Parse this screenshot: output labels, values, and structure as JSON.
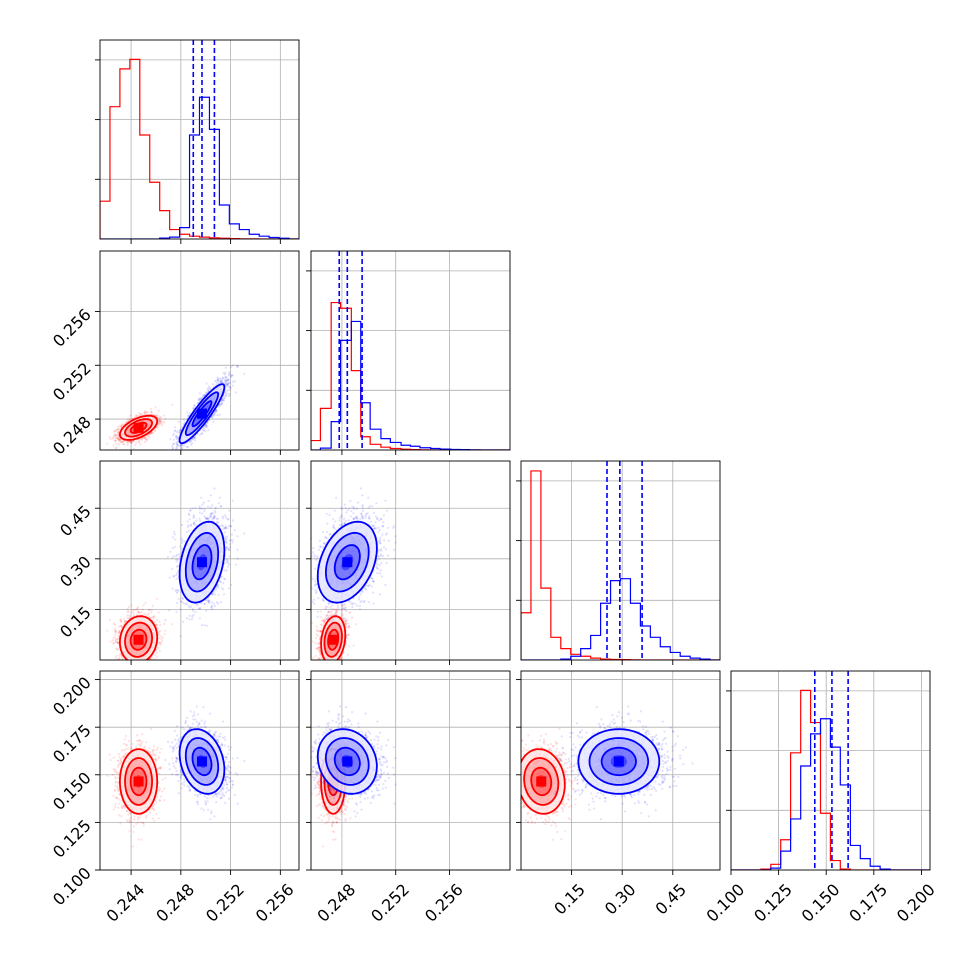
{
  "colors": {
    "red": "#ff0000",
    "blue": "#0000ff",
    "grid": "#b0b0b0",
    "axis": "#000000"
  },
  "chart_data": {
    "type": "corner",
    "grid": true,
    "series": [
      {
        "color": "red"
      },
      {
        "color": "blue"
      }
    ],
    "params": [
      {
        "range": [
          0.2415,
          0.2575
        ],
        "ticks": [
          {
            "v": 0.244,
            "label": "0.244"
          },
          {
            "v": 0.248,
            "label": "0.248"
          },
          {
            "v": 0.252,
            "label": "0.252"
          },
          {
            "v": 0.256,
            "label": "0.256"
          }
        ]
      },
      {
        "range": [
          0.2457,
          0.2605
        ],
        "ticks": [
          {
            "v": 0.248,
            "label": "0.248"
          },
          {
            "v": 0.252,
            "label": "0.252"
          },
          {
            "v": 0.256,
            "label": "0.256"
          }
        ]
      },
      {
        "range": [
          0.0,
          0.59
        ],
        "ticks": [
          {
            "v": 0.15,
            "label": "0.15"
          },
          {
            "v": 0.3,
            "label": "0.30"
          },
          {
            "v": 0.45,
            "label": "0.45"
          }
        ]
      },
      {
        "range": [
          0.1,
          0.2045
        ],
        "ticks": [
          {
            "v": 0.1,
            "label": "0.100"
          },
          {
            "v": 0.125,
            "label": "0.125"
          },
          {
            "v": 0.15,
            "label": "0.150"
          },
          {
            "v": 0.175,
            "label": "0.175"
          },
          {
            "v": 0.2,
            "label": "0.200"
          }
        ]
      }
    ],
    "samples": [
      {
        "color": "red",
        "mean": [
          0.2446,
          0.24735,
          0.06,
          0.1465
        ],
        "sd": [
          0.00075,
          0.00045,
          0.035,
          0.0085
        ],
        "corr": [
          [
            1,
            0.55,
            0.1,
            0
          ],
          [
            0.55,
            1,
            0.2,
            0
          ],
          [
            0.1,
            0.2,
            1,
            -0.1
          ],
          [
            0,
            0,
            -0.1,
            1
          ]
        ]
      },
      {
        "color": "blue",
        "mean": [
          0.2497,
          0.2484,
          0.29,
          0.157
        ],
        "sd": [
          0.0009,
          0.0011,
          0.06,
          0.0085
        ],
        "corr": [
          [
            1,
            0.9,
            0.3,
            -0.25
          ],
          [
            0.9,
            1,
            0.35,
            -0.15
          ],
          [
            0.3,
            0.35,
            1,
            0
          ],
          [
            -0.25,
            -0.15,
            0,
            1
          ]
        ]
      }
    ],
    "histograms": [
      {
        "param": 0,
        "series": [
          {
            "color": "red",
            "edges": [
              0.2415,
              0.2423,
              0.2431,
              0.2439,
              0.2447,
              0.2455,
              0.2463,
              0.2471,
              0.2479,
              0.2487,
              0.2495,
              0.2503,
              0.2511,
              0.2519,
              0.2527,
              0.2535,
              0.2543,
              0.2551,
              0.2559,
              0.2567,
              0.2575
            ],
            "values": [
              0.2,
              0.7,
              0.9,
              0.95,
              0.55,
              0.3,
              0.15,
              0.05,
              0.025,
              0.015,
              0.01,
              0.006,
              0.004,
              0.002,
              0.001,
              0.001,
              0,
              0,
              0,
              0
            ]
          },
          {
            "color": "blue",
            "edges": [
              0.2415,
              0.2423,
              0.2431,
              0.2439,
              0.2447,
              0.2455,
              0.2463,
              0.2471,
              0.2479,
              0.2487,
              0.2495,
              0.2503,
              0.2511,
              0.2519,
              0.2527,
              0.2535,
              0.2543,
              0.2551,
              0.2559,
              0.2567,
              0.2575
            ],
            "values": [
              0,
              0,
              0,
              0,
              0,
              0,
              0.005,
              0.01,
              0.06,
              0.55,
              0.75,
              0.58,
              0.18,
              0.08,
              0.05,
              0.025,
              0.015,
              0.008,
              0.004,
              0
            ]
          }
        ],
        "quantiles": [
          0.249,
          0.2497,
          0.2507
        ]
      },
      {
        "param": 1,
        "series": [
          {
            "color": "red",
            "edges": [
              0.2457,
              0.2464,
              0.2472,
              0.2479,
              0.2487,
              0.2494,
              0.2501,
              0.2509,
              0.2516,
              0.2524,
              0.2531,
              0.2538,
              0.2546,
              0.2553,
              0.2561,
              0.2568,
              0.2575,
              0.2583,
              0.259,
              0.2598,
              0.2605
            ],
            "values": [
              0.05,
              0.22,
              0.78,
              0.75,
              0.42,
              0.07,
              0.03,
              0.015,
              0.008,
              0.004,
              0.002,
              0.001,
              0,
              0,
              0,
              0,
              0,
              0,
              0,
              0
            ]
          },
          {
            "color": "blue",
            "edges": [
              0.2457,
              0.2464,
              0.2472,
              0.2479,
              0.2487,
              0.2494,
              0.2501,
              0.2509,
              0.2516,
              0.2524,
              0.2531,
              0.2538,
              0.2546,
              0.2553,
              0.2561,
              0.2568,
              0.2575,
              0.2583,
              0.259,
              0.2598,
              0.2605
            ],
            "values": [
              0,
              0.01,
              0.15,
              0.58,
              0.68,
              0.25,
              0.11,
              0.06,
              0.04,
              0.025,
              0.02,
              0.012,
              0.008,
              0.005,
              0.003,
              0.002,
              0.001,
              0,
              0,
              0
            ]
          }
        ],
        "quantiles": [
          0.2478,
          0.2484,
          0.2495
        ]
      },
      {
        "param": 2,
        "series": [
          {
            "color": "red",
            "edges": [
              0.0,
              0.0295,
              0.059,
              0.0885,
              0.118,
              0.1475,
              0.177,
              0.2065,
              0.236,
              0.2655,
              0.295,
              0.3245,
              0.354,
              0.3835,
              0.413,
              0.4425,
              0.472,
              0.5015,
              0.531,
              0.5605,
              0.59
            ],
            "values": [
              0.25,
              1.0,
              0.38,
              0.12,
              0.06,
              0.03,
              0.02,
              0.01,
              0.005,
              0.003,
              0.002,
              0.001,
              0,
              0,
              0,
              0,
              0,
              0,
              0,
              0
            ]
          },
          {
            "color": "blue",
            "edges": [
              0.0,
              0.0295,
              0.059,
              0.0885,
              0.118,
              0.1475,
              0.177,
              0.2065,
              0.236,
              0.2655,
              0.295,
              0.3245,
              0.354,
              0.3835,
              0.413,
              0.4425,
              0.472,
              0.5015,
              0.531,
              0.5605,
              0.59
            ],
            "values": [
              0,
              0,
              0,
              0,
              0.005,
              0.02,
              0.06,
              0.13,
              0.3,
              0.42,
              0.43,
              0.3,
              0.18,
              0.12,
              0.07,
              0.04,
              0.02,
              0.01,
              0.005,
              0
            ]
          }
        ],
        "quantiles": [
          0.255,
          0.293,
          0.359
        ]
      },
      {
        "param": 3,
        "series": [
          {
            "color": "red",
            "edges": [
              0.1,
              0.1052,
              0.1104,
              0.1157,
              0.1209,
              0.1261,
              0.1313,
              0.1366,
              0.1418,
              0.147,
              0.1522,
              0.1574,
              0.1627,
              0.1679,
              0.1731,
              0.1783,
              0.1836,
              0.1888,
              0.194,
              0.1992,
              0.2045
            ],
            "values": [
              0,
              0,
              0,
              0.005,
              0.03,
              0.16,
              0.62,
              0.95,
              0.78,
              0.3,
              0.05,
              0.005,
              0,
              0,
              0,
              0,
              0,
              0,
              0,
              0
            ]
          },
          {
            "color": "blue",
            "edges": [
              0.1,
              0.1052,
              0.1104,
              0.1157,
              0.1209,
              0.1261,
              0.1313,
              0.1366,
              0.1418,
              0.147,
              0.1522,
              0.1574,
              0.1627,
              0.1679,
              0.1731,
              0.1783,
              0.1836,
              0.1888,
              0.194,
              0.1992,
              0.2045
            ],
            "values": [
              0,
              0,
              0,
              0,
              0.01,
              0.1,
              0.27,
              0.55,
              0.72,
              0.8,
              0.65,
              0.45,
              0.13,
              0.06,
              0.02,
              0.005,
              0,
              0,
              0,
              0
            ]
          }
        ],
        "quantiles": [
          0.144,
          0.153,
          0.1615
        ]
      }
    ]
  }
}
